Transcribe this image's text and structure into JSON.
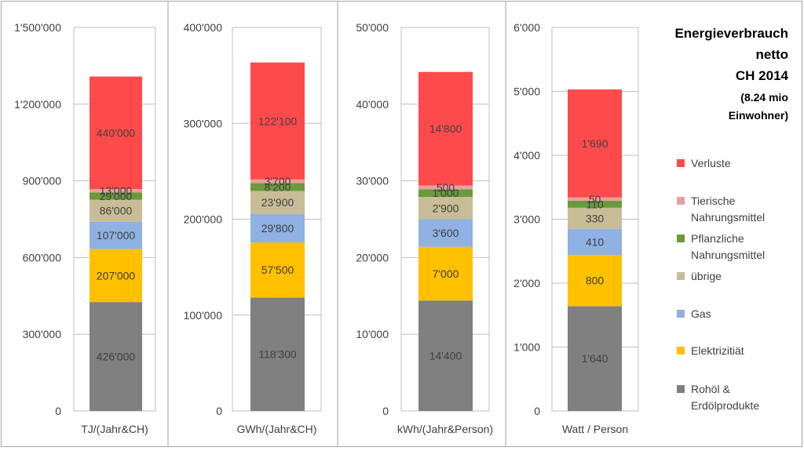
{
  "title": {
    "lines": [
      "Energieverbrauch",
      "netto",
      "CH 2014"
    ],
    "sub_lines": [
      "(8.24 mio",
      "Einwohner)"
    ]
  },
  "colors": {
    "Verluste": "#fd4b4b",
    "Tierische Nahrungsmittel": "#e8a0a0",
    "Pflanzliche Nahrungsmittel": "#6a9a3a",
    "übrige": "#c8bd97",
    "Gas": "#8fb1e3",
    "Elektrizitiät": "#ffc000",
    "Rohöl & Erdölprodukte": "#808080"
  },
  "legend": [
    {
      "key": "Verluste",
      "lines": [
        "Verluste"
      ]
    },
    {
      "key": "Tierische Nahrungsmittel",
      "lines": [
        "Tierische",
        "Nahrungsmittel"
      ]
    },
    {
      "key": "Pflanzliche Nahrungsmittel",
      "lines": [
        "Pflanzliche",
        "Nahrungsmittel"
      ]
    },
    {
      "key": "übrige",
      "lines": [
        "übrige"
      ]
    },
    {
      "key": "Gas",
      "lines": [
        "Gas"
      ]
    },
    {
      "key": "Elektrizitiät",
      "lines": [
        "Elektrizitiät"
      ]
    },
    {
      "key": "Rohöl & Erdölprodukte",
      "lines": [
        "Rohöl &",
        "Erdölprodukte"
      ]
    }
  ],
  "chart_data": [
    {
      "type": "bar",
      "stacked": true,
      "xlabel": "TJ/(Jahr&CH)",
      "ylim": [
        0,
        1500000
      ],
      "yticks": [
        0,
        300000,
        600000,
        900000,
        1200000,
        1500000
      ],
      "ytick_labels": [
        "0",
        "300'000",
        "600'000",
        "900'000",
        "1'200'000",
        "1'500'000"
      ],
      "series": [
        {
          "name": "Rohöl & Erdölprodukte",
          "value": 426000,
          "label": "426'000"
        },
        {
          "name": "Elektrizitiät",
          "value": 207000,
          "label": "207'000"
        },
        {
          "name": "Gas",
          "value": 107000,
          "label": "107'000"
        },
        {
          "name": "übrige",
          "value": 86000,
          "label": "86'000"
        },
        {
          "name": "Pflanzliche Nahrungsmittel",
          "value": 29000,
          "label": "29'000"
        },
        {
          "name": "Tierische Nahrungsmittel",
          "value": 13000,
          "label": "13'000"
        },
        {
          "name": "Verluste",
          "value": 440000,
          "label": "440'000"
        }
      ]
    },
    {
      "type": "bar",
      "stacked": true,
      "xlabel": "GWh/(Jahr&CH)",
      "ylim": [
        0,
        400000
      ],
      "yticks": [
        0,
        100000,
        200000,
        300000,
        400000
      ],
      "ytick_labels": [
        "0",
        "100'000",
        "200'000",
        "300'000",
        "400'000"
      ],
      "series": [
        {
          "name": "Rohöl & Erdölprodukte",
          "value": 118300,
          "label": "118'300"
        },
        {
          "name": "Elektrizitiät",
          "value": 57500,
          "label": "57'500"
        },
        {
          "name": "Gas",
          "value": 29800,
          "label": "29'800"
        },
        {
          "name": "übrige",
          "value": 23900,
          "label": "23'900"
        },
        {
          "name": "Pflanzliche Nahrungsmittel",
          "value": 8200,
          "label": "8'200"
        },
        {
          "name": "Tierische Nahrungsmittel",
          "value": 3700,
          "label": "3'700"
        },
        {
          "name": "Verluste",
          "value": 122100,
          "label": "122'100"
        }
      ]
    },
    {
      "type": "bar",
      "stacked": true,
      "xlabel": "kWh/(Jahr&Person)",
      "ylim": [
        0,
        50000
      ],
      "yticks": [
        0,
        10000,
        20000,
        30000,
        40000,
        50000
      ],
      "ytick_labels": [
        "0",
        "10'000",
        "20'000",
        "30'000",
        "40'000",
        "50'000"
      ],
      "series": [
        {
          "name": "Rohöl & Erdölprodukte",
          "value": 14400,
          "label": "14'400"
        },
        {
          "name": "Elektrizitiät",
          "value": 7000,
          "label": "7'000"
        },
        {
          "name": "Gas",
          "value": 3600,
          "label": "3'600"
        },
        {
          "name": "übrige",
          "value": 2900,
          "label": "2'900"
        },
        {
          "name": "Pflanzliche Nahrungsmittel",
          "value": 1000,
          "label": "1'000"
        },
        {
          "name": "Tierische Nahrungsmittel",
          "value": 500,
          "label": "500"
        },
        {
          "name": "Verluste",
          "value": 14800,
          "label": "14'800"
        }
      ]
    },
    {
      "type": "bar",
      "stacked": true,
      "xlabel": "Watt / Person",
      "ylim": [
        0,
        6000
      ],
      "yticks": [
        0,
        1000,
        2000,
        3000,
        4000,
        5000,
        6000
      ],
      "ytick_labels": [
        "0",
        "1'000",
        "2'000",
        "3'000",
        "4'000",
        "5'000",
        "6'000"
      ],
      "series": [
        {
          "name": "Rohöl & Erdölprodukte",
          "value": 1640,
          "label": "1'640"
        },
        {
          "name": "Elektrizitiät",
          "value": 800,
          "label": "800"
        },
        {
          "name": "Gas",
          "value": 410,
          "label": "410"
        },
        {
          "name": "übrige",
          "value": 330,
          "label": "330"
        },
        {
          "name": "Pflanzliche Nahrungsmittel",
          "value": 110,
          "label": "110"
        },
        {
          "name": "Tierische Nahrungsmittel",
          "value": 50,
          "label": "50"
        },
        {
          "name": "Verluste",
          "value": 1690,
          "label": "1'690"
        }
      ]
    }
  ]
}
